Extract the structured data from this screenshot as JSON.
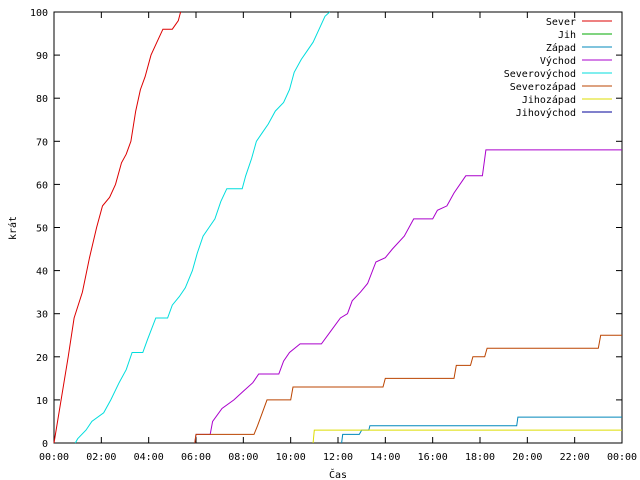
{
  "chart_data": {
    "type": "line",
    "title": "",
    "xlabel": "Čas",
    "ylabel": "krát",
    "xlim": [
      0,
      24
    ],
    "ylim": [
      0,
      100
    ],
    "x_ticks": [
      {
        "v": 0,
        "label": "00:00"
      },
      {
        "v": 2,
        "label": "02:00"
      },
      {
        "v": 4,
        "label": "04:00"
      },
      {
        "v": 6,
        "label": "06:00"
      },
      {
        "v": 8,
        "label": "08:00"
      },
      {
        "v": 10,
        "label": "10:00"
      },
      {
        "v": 12,
        "label": "12:00"
      },
      {
        "v": 14,
        "label": "14:00"
      },
      {
        "v": 16,
        "label": "16:00"
      },
      {
        "v": 18,
        "label": "18:00"
      },
      {
        "v": 20,
        "label": "20:00"
      },
      {
        "v": 22,
        "label": "22:00"
      },
      {
        "v": 24,
        "label": "00:00"
      }
    ],
    "y_ticks": [
      0,
      10,
      20,
      30,
      40,
      50,
      60,
      70,
      80,
      90,
      100
    ],
    "grid": false,
    "legend_position": "top-right",
    "series": [
      {
        "name": "Sever",
        "color": "#dd0000",
        "points": [
          [
            0.0,
            0
          ],
          [
            0.3,
            10
          ],
          [
            0.6,
            20
          ],
          [
            0.85,
            29
          ],
          [
            1.2,
            35
          ],
          [
            1.5,
            43
          ],
          [
            1.8,
            50
          ],
          [
            2.05,
            55
          ],
          [
            2.35,
            57
          ],
          [
            2.6,
            60
          ],
          [
            2.85,
            65
          ],
          [
            3.05,
            67
          ],
          [
            3.25,
            70
          ],
          [
            3.45,
            77
          ],
          [
            3.65,
            82
          ],
          [
            3.85,
            85
          ],
          [
            4.1,
            90
          ],
          [
            4.35,
            93
          ],
          [
            4.6,
            96
          ],
          [
            5.0,
            96
          ],
          [
            5.25,
            98
          ],
          [
            5.35,
            100
          ]
        ]
      },
      {
        "name": "Jih",
        "color": "#00aa00",
        "points": []
      },
      {
        "name": "Západ",
        "color": "#0088bb",
        "points": [
          [
            12.15,
            0
          ],
          [
            12.2,
            2
          ],
          [
            12.9,
            2
          ],
          [
            13.0,
            3
          ],
          [
            13.3,
            3
          ],
          [
            13.35,
            4
          ],
          [
            19.55,
            4
          ],
          [
            19.6,
            6
          ],
          [
            24,
            6
          ]
        ]
      },
      {
        "name": "Východ",
        "color": "#aa00cc",
        "points": [
          [
            5.95,
            0
          ],
          [
            6.0,
            2
          ],
          [
            6.6,
            2
          ],
          [
            6.7,
            5
          ],
          [
            7.1,
            8
          ],
          [
            7.6,
            10
          ],
          [
            8.0,
            12
          ],
          [
            8.4,
            14
          ],
          [
            8.65,
            16
          ],
          [
            9.5,
            16
          ],
          [
            9.7,
            19
          ],
          [
            9.95,
            21
          ],
          [
            10.4,
            23
          ],
          [
            11.3,
            23
          ],
          [
            11.7,
            26
          ],
          [
            12.1,
            29
          ],
          [
            12.4,
            30
          ],
          [
            12.6,
            33
          ],
          [
            12.95,
            35
          ],
          [
            13.25,
            37
          ],
          [
            13.6,
            42
          ],
          [
            14.0,
            43
          ],
          [
            14.3,
            45
          ],
          [
            14.8,
            48
          ],
          [
            15.2,
            52
          ],
          [
            16.0,
            52
          ],
          [
            16.2,
            54
          ],
          [
            16.6,
            55
          ],
          [
            16.9,
            58
          ],
          [
            17.4,
            62
          ],
          [
            18.1,
            62
          ],
          [
            18.25,
            68
          ],
          [
            24,
            68
          ]
        ]
      },
      {
        "name": "Severovýchod",
        "color": "#00dddd",
        "points": [
          [
            0.9,
            0
          ],
          [
            1.0,
            1
          ],
          [
            1.35,
            3
          ],
          [
            1.6,
            5
          ],
          [
            2.1,
            7
          ],
          [
            2.4,
            10
          ],
          [
            2.75,
            14
          ],
          [
            3.05,
            17
          ],
          [
            3.3,
            21
          ],
          [
            3.75,
            21
          ],
          [
            3.95,
            24
          ],
          [
            4.3,
            29
          ],
          [
            4.8,
            29
          ],
          [
            5.0,
            32
          ],
          [
            5.3,
            34
          ],
          [
            5.55,
            36
          ],
          [
            5.85,
            40
          ],
          [
            6.05,
            44
          ],
          [
            6.3,
            48
          ],
          [
            6.55,
            50
          ],
          [
            6.8,
            52
          ],
          [
            7.05,
            56
          ],
          [
            7.3,
            59
          ],
          [
            7.95,
            59
          ],
          [
            8.1,
            62
          ],
          [
            8.35,
            66
          ],
          [
            8.55,
            70
          ],
          [
            8.8,
            72
          ],
          [
            9.05,
            74
          ],
          [
            9.35,
            77
          ],
          [
            9.7,
            79
          ],
          [
            9.95,
            82
          ],
          [
            10.15,
            86
          ],
          [
            10.45,
            89
          ],
          [
            10.7,
            91
          ],
          [
            10.95,
            93
          ],
          [
            11.2,
            96
          ],
          [
            11.45,
            99
          ],
          [
            11.65,
            100
          ]
        ]
      },
      {
        "name": "Severozápad",
        "color": "#bb4400",
        "points": [
          [
            5.95,
            0
          ],
          [
            6.0,
            2
          ],
          [
            8.45,
            2
          ],
          [
            8.6,
            4
          ],
          [
            8.8,
            7
          ],
          [
            9.0,
            10
          ],
          [
            10.0,
            10
          ],
          [
            10.1,
            13
          ],
          [
            13.9,
            13
          ],
          [
            14.0,
            15
          ],
          [
            16.9,
            15
          ],
          [
            17.0,
            18
          ],
          [
            17.6,
            18
          ],
          [
            17.7,
            20
          ],
          [
            18.2,
            20
          ],
          [
            18.3,
            22
          ],
          [
            23.0,
            22
          ],
          [
            23.1,
            25
          ],
          [
            24,
            25
          ]
        ]
      },
      {
        "name": "Jihozápad",
        "color": "#dddd00",
        "points": [
          [
            10.95,
            0
          ],
          [
            11.0,
            3
          ],
          [
            24,
            3
          ]
        ]
      },
      {
        "name": "Jihovýchod",
        "color": "#000099",
        "points": []
      }
    ]
  }
}
